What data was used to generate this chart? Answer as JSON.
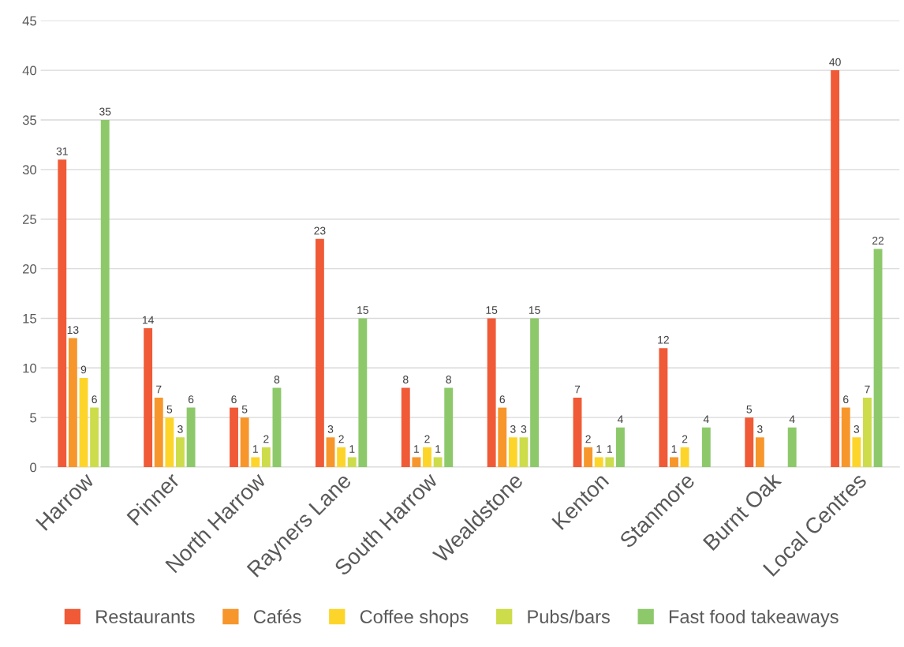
{
  "chart_data": {
    "type": "bar",
    "categories": [
      "Harrow",
      "Pinner",
      "North Harrow",
      "Rayners Lane",
      "South Harrow",
      "Wealdstone",
      "Kenton",
      "Stanmore",
      "Burnt Oak",
      "Local Centres"
    ],
    "series": [
      {
        "name": "Restaurants",
        "color": "#f05a37",
        "values": [
          31,
          14,
          6,
          23,
          8,
          15,
          7,
          12,
          5,
          40
        ]
      },
      {
        "name": "Cafés",
        "color": "#f7962b",
        "values": [
          13,
          7,
          5,
          3,
          1,
          6,
          2,
          1,
          3,
          6
        ]
      },
      {
        "name": "Coffee shops",
        "color": "#fdd52a",
        "values": [
          9,
          5,
          1,
          2,
          2,
          3,
          1,
          2,
          null,
          3
        ]
      },
      {
        "name": "Pubs/bars",
        "color": "#cddc4a",
        "values": [
          6,
          3,
          2,
          1,
          1,
          3,
          1,
          null,
          null,
          7
        ]
      },
      {
        "name": "Fast food takeaways",
        "color": "#8dc96b",
        "values": [
          35,
          6,
          8,
          15,
          8,
          15,
          4,
          4,
          4,
          22
        ]
      }
    ],
    "ylim": [
      0,
      45
    ],
    "yticks": [
      0,
      5,
      10,
      15,
      20,
      25,
      30,
      35,
      40,
      45
    ],
    "grid": "y",
    "legend": "bottom",
    "data_labels": true
  }
}
